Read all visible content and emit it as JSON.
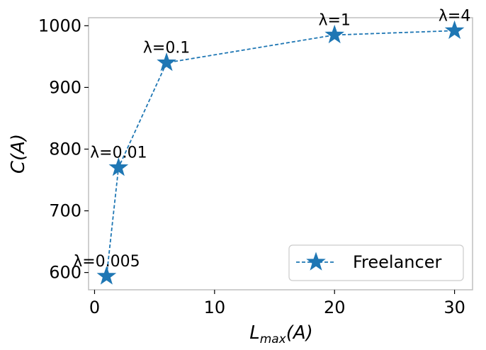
{
  "chart_data": {
    "type": "line",
    "xlabel_base": "L",
    "xlabel_sub": "max",
    "xlabel_tail": "(A)",
    "ylabel": "C(A)",
    "xlim": [
      -0.5,
      31.5
    ],
    "ylim": [
      572,
      1013
    ],
    "xticks": [
      0,
      10,
      20,
      30
    ],
    "yticks": [
      600,
      700,
      800,
      900,
      1000
    ],
    "grid": false,
    "legend_position": "lower-right",
    "series": [
      {
        "name": "Freelancer",
        "color": "#1f77b4",
        "line_style": "dashed",
        "marker": "star",
        "x": [
          1,
          2,
          6,
          20,
          30
        ],
        "y": [
          594,
          770,
          940,
          985,
          992
        ],
        "annotations": [
          "λ=0.005",
          "λ=0.01",
          "λ=0.1",
          "λ=1",
          "λ=4"
        ]
      }
    ]
  }
}
